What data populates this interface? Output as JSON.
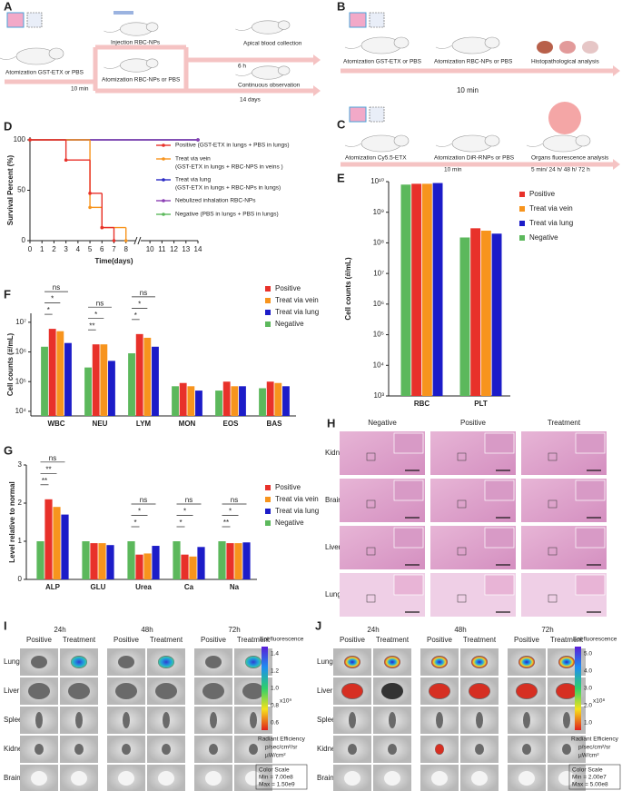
{
  "labels": [
    "A",
    "B",
    "C",
    "D",
    "E",
    "F",
    "G",
    "H",
    "I",
    "J"
  ],
  "schemes": {
    "A": {
      "steps": [
        "Atomization GST-ETX or PBS",
        "Injection RBC-NPs",
        "Atomization RBC-NPs or PBS",
        "Apical blood collection",
        "Continuous observation"
      ],
      "times": [
        "10 min",
        "6 h",
        "14 days"
      ]
    },
    "B": {
      "steps": [
        "Atomization GST-ETX or PBS",
        "Atomization RBC-NPs or PBS",
        "Histopathological analysis"
      ],
      "times": [
        "10 min"
      ]
    },
    "C": {
      "steps": [
        "Atomization Cy5.5-ETX",
        "Atomization DiR-RNPs or PBS",
        "Organs fluorescence analysis"
      ],
      "times": [
        "10 min",
        "5 min/ 24 h/ 48 h/ 72 h"
      ]
    }
  },
  "chart_data": [
    {
      "type": "line",
      "xlabel": "Time(days)",
      "ylabel": "Survival Percent (%)",
      "xlim": [
        0,
        14
      ],
      "ylim": [
        0,
        100
      ],
      "xticks": [
        0,
        1,
        2,
        3,
        4,
        5,
        6,
        7,
        8,
        10,
        11,
        12,
        13,
        14
      ],
      "yticks": [
        0,
        50,
        100
      ],
      "series": [
        {
          "name": "Positive (GST-ETX in lungs + PBS in lungs)",
          "color": "#e8312a",
          "x": [
            0,
            3,
            5,
            6,
            7
          ],
          "values": [
            100,
            80,
            47,
            13,
            0
          ]
        },
        {
          "name": "Treat via vein",
          "detail": "(GST-ETX in lungs + RBC-NPS in veins )",
          "color": "#f7941d",
          "x": [
            0,
            5,
            6,
            8
          ],
          "values": [
            100,
            33,
            13,
            0
          ]
        },
        {
          "name": "Treat via lung",
          "detail": "(GST-ETX in lungs + RBC-NPs in lungs)",
          "color": "#2a2ac4",
          "x": [
            0,
            14
          ],
          "values": [
            100,
            100
          ]
        },
        {
          "name": "Nebulized inhalation RBC-NPs",
          "color": "#8b3fb4",
          "x": [
            0,
            14
          ],
          "values": [
            100,
            100
          ]
        },
        {
          "name": "Negative (PBS in lungs + PBS in lungs)",
          "color": "#5cb85c",
          "x": [
            0,
            14
          ],
          "values": [
            100,
            100
          ]
        }
      ]
    },
    {
      "type": "bar",
      "ylabel": "Cell counts (#/mL)",
      "log_scale": true,
      "categories": [
        "RBC",
        "PLT"
      ],
      "ylim": [
        1000,
        10000000000
      ],
      "yticks": [
        {
          "value": 1000,
          "label": "10³"
        },
        {
          "value": 10000,
          "label": "10⁴"
        },
        {
          "value": 100000,
          "label": "10⁵"
        },
        {
          "value": 1000000,
          "label": "10⁶"
        },
        {
          "value": 10000000,
          "label": "10⁷"
        },
        {
          "value": 100000000,
          "label": "10⁸"
        },
        {
          "value": 1000000000,
          "label": "10⁹"
        },
        {
          "value": 10000000000,
          "label": "10¹⁰"
        }
      ],
      "series": [
        {
          "name": "Positive",
          "color": "#e8312a",
          "values": [
            8500000000,
            300000000
          ]
        },
        {
          "name": "Treat via vein",
          "color": "#f7941d",
          "values": [
            8500000000,
            250000000
          ]
        },
        {
          "name": "Treat via lung",
          "color": "#1c1cc8",
          "values": [
            9000000000,
            200000000
          ]
        },
        {
          "name": "Negative",
          "color": "#5cb85c",
          "values": [
            8000000000,
            150000000
          ]
        }
      ]
    },
    {
      "type": "bar",
      "ylabel": "Cell counts (#/mL)",
      "log_scale": true,
      "categories": [
        "WBC",
        "NEU",
        "LYM",
        "MON",
        "EOS",
        "BAS"
      ],
      "ylim": [
        7000,
        20000000
      ],
      "yticks": [
        {
          "value": 10000,
          "label": "10⁴"
        },
        {
          "value": 100000,
          "label": "10⁵"
        },
        {
          "value": 1000000,
          "label": "10⁶"
        },
        {
          "value": 10000000,
          "label": "10⁷"
        }
      ],
      "series": [
        {
          "name": "Positive",
          "color": "#e8312a",
          "values": [
            6000000,
            1800000,
            4000000,
            90000,
            100000,
            100000
          ]
        },
        {
          "name": "Treat via vein",
          "color": "#f7941d",
          "values": [
            5000000,
            1800000,
            3000000,
            70000,
            70000,
            90000
          ]
        },
        {
          "name": "Treat via lung",
          "color": "#1c1cc8",
          "values": [
            2000000,
            500000,
            1500000,
            50000,
            70000,
            70000
          ]
        },
        {
          "name": "Negative",
          "color": "#5cb85c",
          "values": [
            1500000,
            300000,
            900000,
            70000,
            50000,
            60000
          ]
        }
      ],
      "annotations": [
        {
          "text": "ns",
          "category": 0,
          "series": [
            3,
            2
          ]
        },
        {
          "text": "*",
          "category": 0,
          "series": [
            3,
            1
          ]
        },
        {
          "text": "*",
          "category": 0,
          "series": [
            3,
            0
          ]
        },
        {
          "text": "ns",
          "category": 1,
          "series": [
            3,
            2
          ]
        },
        {
          "text": "*",
          "category": 1,
          "series": [
            3,
            1
          ]
        },
        {
          "text": "**",
          "category": 1,
          "series": [
            3,
            0
          ]
        },
        {
          "text": "ns",
          "category": 2,
          "series": [
            3,
            2
          ]
        },
        {
          "text": "*",
          "category": 2,
          "series": [
            3,
            1
          ]
        },
        {
          "text": "*",
          "category": 2,
          "series": [
            3,
            0
          ]
        }
      ]
    },
    {
      "type": "bar",
      "ylabel": "Level relative to normal",
      "log_scale": false,
      "categories": [
        "ALP",
        "GLU",
        "Urea",
        "Ca",
        "Na"
      ],
      "ylim": [
        0,
        3
      ],
      "yticks": [
        0,
        1,
        2,
        3
      ],
      "series": [
        {
          "name": "Positive",
          "color": "#e8312a",
          "values": [
            2.1,
            0.95,
            0.65,
            0.65,
            0.95
          ]
        },
        {
          "name": "Treat via vein",
          "color": "#f7941d",
          "values": [
            1.9,
            0.95,
            0.68,
            0.6,
            0.95
          ]
        },
        {
          "name": "Treat via lung",
          "color": "#1c1cc8",
          "values": [
            1.7,
            0.9,
            0.88,
            0.85,
            0.97
          ]
        },
        {
          "name": "Negative",
          "color": "#5cb85c",
          "values": [
            1,
            1,
            1,
            1,
            1
          ]
        }
      ],
      "annotations": [
        {
          "text": "ns",
          "category": 0,
          "series": [
            3,
            2
          ]
        },
        {
          "text": "**",
          "category": 0,
          "series": [
            3,
            1
          ]
        },
        {
          "text": "**",
          "category": 0,
          "series": [
            3,
            0
          ]
        },
        {
          "text": "ns",
          "category": 2,
          "series": [
            3,
            2
          ]
        },
        {
          "text": "*",
          "category": 2,
          "series": [
            3,
            1
          ]
        },
        {
          "text": "*",
          "category": 2,
          "series": [
            3,
            0
          ]
        },
        {
          "text": "ns",
          "category": 3,
          "series": [
            3,
            2
          ]
        },
        {
          "text": "*",
          "category": 3,
          "series": [
            3,
            1
          ]
        },
        {
          "text": "*",
          "category": 3,
          "series": [
            3,
            0
          ]
        },
        {
          "text": "ns",
          "category": 4,
          "series": [
            3,
            2
          ]
        },
        {
          "text": "*",
          "category": 4,
          "series": [
            3,
            1
          ]
        },
        {
          "text": "**",
          "category": 4,
          "series": [
            3,
            0
          ]
        }
      ]
    }
  ],
  "histology": {
    "columns": [
      "Negative",
      "Positive",
      "Treatment"
    ],
    "rows": [
      "Kidney",
      "Brain",
      "Liver",
      "Lung"
    ]
  },
  "imaging": [
    {
      "times": [
        "24h",
        "48h",
        "72h"
      ],
      "groups": [
        "Positive",
        "Treatment"
      ],
      "rows": [
        "Lung",
        "Liver",
        "Spleen",
        "Kidney",
        "Brain"
      ],
      "colorbar": {
        "title": "Epi-fluorescence",
        "ticks": [
          "1.4",
          "1.2",
          "1.0",
          "0.8",
          "0.6"
        ],
        "exponent": "x10⁹",
        "unit": [
          "Radiant Efficiency",
          "p/sec/cm²/sr",
          "µW/cm²"
        ],
        "scale": [
          "Color Scale",
          "Min = 7.00e8",
          "Max = 1.50e9"
        ]
      }
    },
    {
      "times": [
        "24h",
        "48h",
        "72h"
      ],
      "groups": [
        "Positive",
        "Treatment"
      ],
      "rows": [
        "Lung",
        "Liver",
        "Spleen",
        "Kidney",
        "Brain"
      ],
      "colorbar": {
        "title": "Epi-fluorescence",
        "ticks": [
          "5.0",
          "4.0",
          "3.0",
          "2.0",
          "1.0"
        ],
        "exponent": "x10⁸",
        "unit": [
          "Radiant Efficiency",
          "p/sec/cm²/sr",
          "µW/cm²"
        ],
        "scale": [
          "Color Scale",
          "Min = 2.00e7",
          "Max = 5.00e8"
        ]
      }
    }
  ]
}
